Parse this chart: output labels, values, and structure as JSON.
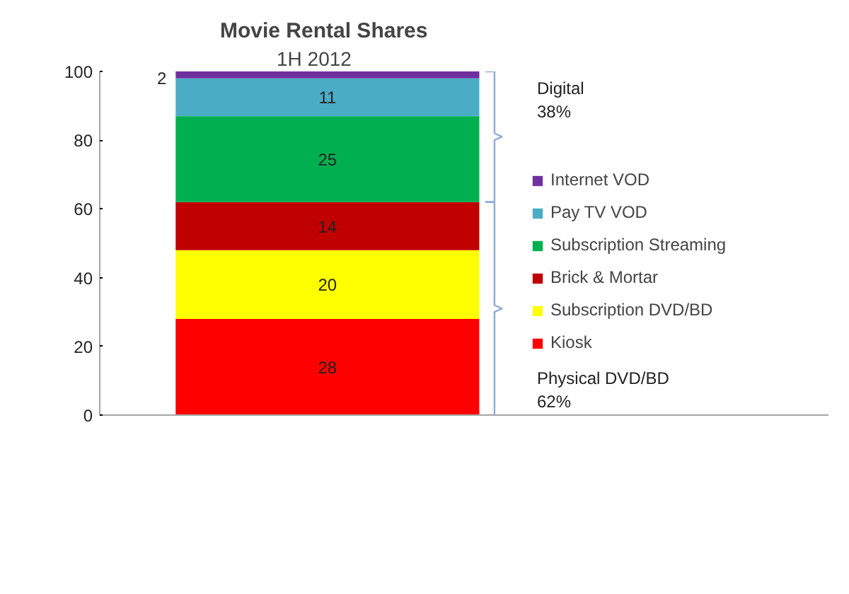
{
  "chart_data": {
    "type": "bar",
    "title": "Movie Rental Shares",
    "subtitle": "1H 2012",
    "categories": [
      null
    ],
    "stacked": true,
    "data_labels": true,
    "legend": "right",
    "grid": false,
    "ylim": [
      0,
      100
    ],
    "yticks": [
      0,
      20,
      40,
      60,
      80,
      100
    ],
    "series": [
      {
        "name": "Kiosk",
        "color": "#ff0000",
        "values": [
          28
        ]
      },
      {
        "name": "Subscription DVD/BD",
        "color": "#ffff00",
        "values": [
          20
        ]
      },
      {
        "name": "Brick & Mortar",
        "color": "#c00000",
        "values": [
          14
        ]
      },
      {
        "name": "Subscription Streaming",
        "color": "#00b050",
        "values": [
          25
        ]
      },
      {
        "name": "Pay TV VOD",
        "color": "#4bacc6",
        "values": [
          11
        ]
      },
      {
        "name": "Internet VOD",
        "color": "#7030a0",
        "values": [
          2
        ]
      }
    ],
    "annotations": [
      "Digital\n38%",
      "Physical DVD/BD\n62%"
    ]
  }
}
